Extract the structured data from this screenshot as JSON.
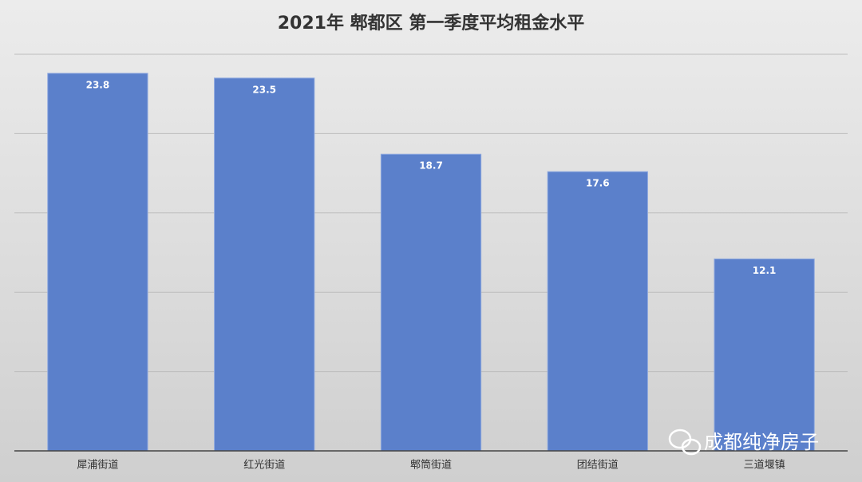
{
  "chart_data": {
    "type": "bar",
    "title": "2021年 郫都区 第一季度平均租金水平",
    "categories": [
      "犀浦街道",
      "红光街道",
      "郫筒街道",
      "团结街道",
      "三道堰镇"
    ],
    "values": [
      23.8,
      23.5,
      18.7,
      17.6,
      12.1
    ],
    "color": "#5b80cb",
    "ylim": [
      0,
      25
    ],
    "yticks": [
      0,
      5,
      10,
      15,
      20,
      25
    ],
    "grid": true,
    "watermark": "成都纯净房子"
  }
}
